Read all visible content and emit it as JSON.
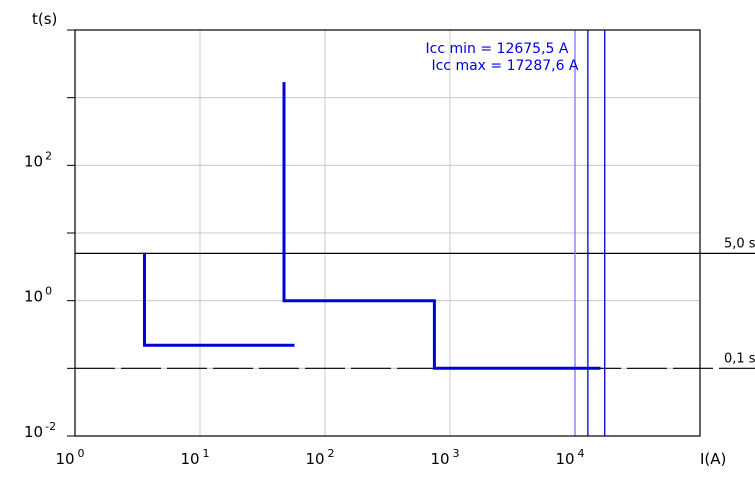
{
  "chart_data": {
    "type": "line",
    "xlabel": "I(A)",
    "ylabel": "t(s)",
    "x_scale": "log",
    "y_scale": "log",
    "xlim": [
      1,
      100000
    ],
    "ylim": [
      0.01,
      10000
    ],
    "x_ticks": [
      {
        "value": 1,
        "base": "10",
        "exp": "0"
      },
      {
        "value": 10,
        "base": "10",
        "exp": "1"
      },
      {
        "value": 100,
        "base": "10",
        "exp": "2"
      },
      {
        "value": 1000,
        "base": "10",
        "exp": "3"
      },
      {
        "value": 10000,
        "base": "10",
        "exp": "4"
      }
    ],
    "y_ticks": [
      {
        "value": 0.01,
        "base": "10",
        "exp": "-2"
      },
      {
        "value": 1,
        "base": "10",
        "exp": "0"
      },
      {
        "value": 100,
        "base": "10",
        "exp": "2"
      }
    ],
    "grid": true,
    "series": [
      {
        "color": "#0000dd",
        "points": [
          [
            3.6,
            5.1
          ],
          [
            3.6,
            0.22
          ],
          [
            57,
            0.22
          ]
        ]
      },
      {
        "color": "#0000dd",
        "points": [
          [
            47,
            1700
          ],
          [
            47,
            1.0
          ],
          [
            750,
            1.0
          ],
          [
            750,
            0.1
          ],
          [
            16000,
            0.1
          ]
        ]
      }
    ],
    "reference_lines": [
      {
        "y": 5.0,
        "label": "5,0 s",
        "style": "solid",
        "color": "#000000"
      },
      {
        "y": 0.1,
        "label": "0,1 s",
        "style": "dashed",
        "color": "#000000"
      }
    ],
    "vertical_lines": [
      {
        "x": 10000,
        "color": "#7a7aff"
      },
      {
        "x": 12675.5,
        "color": "#0000dd"
      },
      {
        "x": 17287.6,
        "color": "#0000dd"
      }
    ],
    "annotations": [
      {
        "text": "Icc min = 12675,5 A",
        "color": "#0000dd"
      },
      {
        "text": "Icc max = 17287,6 A",
        "color": "#0000dd"
      }
    ]
  }
}
